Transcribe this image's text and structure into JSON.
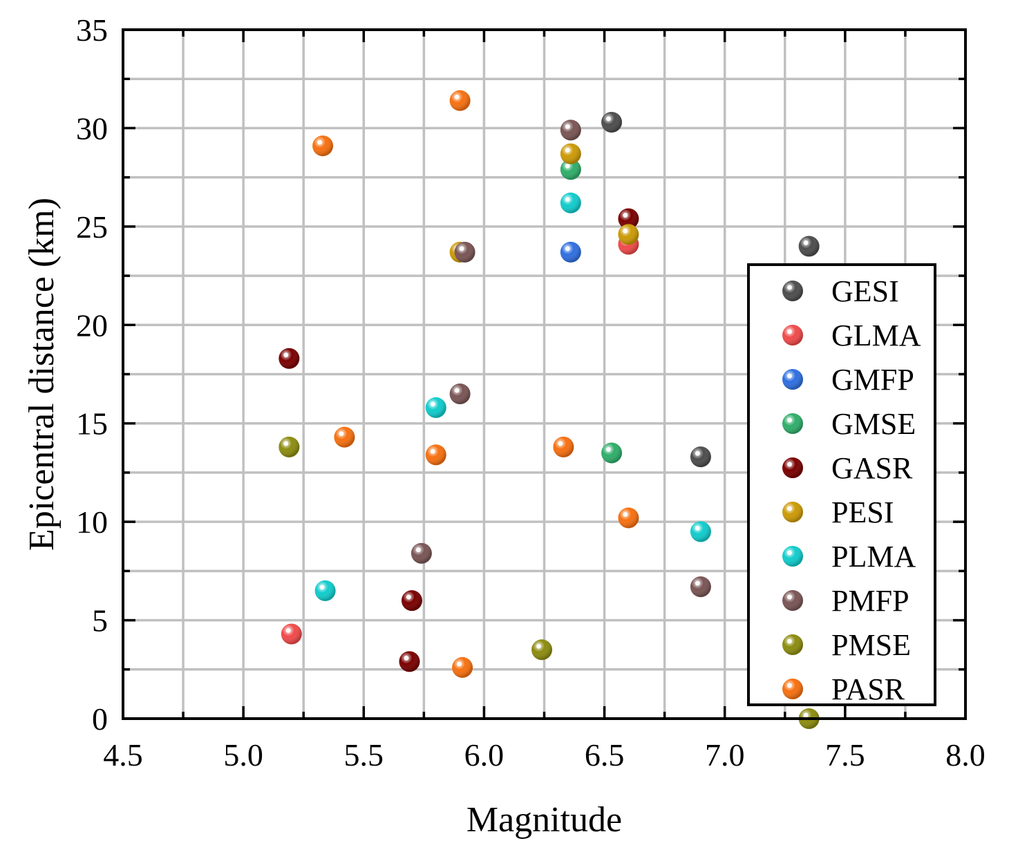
{
  "chart_data": {
    "type": "scatter",
    "xlabel": "Magnitude",
    "ylabel": "Epicentral distance (km)",
    "xlim": [
      4.5,
      8.0
    ],
    "ylim": [
      0,
      35
    ],
    "xticks": [
      4.5,
      5.0,
      5.5,
      6.0,
      6.5,
      7.0,
      7.5,
      8.0
    ],
    "xtick_labels": [
      "4.5",
      "5.0",
      "5.5",
      "6.0",
      "6.5",
      "7.0",
      "7.5",
      "8.0"
    ],
    "yticks": [
      0,
      5,
      10,
      15,
      20,
      25,
      30,
      35
    ],
    "ytick_labels": [
      "0",
      "5",
      "10",
      "15",
      "20",
      "25",
      "30",
      "35"
    ],
    "grid": true,
    "legend_position": "bottom-right",
    "series": [
      {
        "name": "GESI",
        "color": "#4d4d4d",
        "points": [
          [
            6.53,
            30.3
          ],
          [
            7.35,
            24.0
          ],
          [
            6.9,
            13.3
          ]
        ]
      },
      {
        "name": "GLMA",
        "color": "#f04a4a",
        "points": [
          [
            6.6,
            24.1
          ],
          [
            5.2,
            4.3
          ]
        ]
      },
      {
        "name": "GMFP",
        "color": "#2f6fe0",
        "points": [
          [
            6.36,
            23.7
          ]
        ]
      },
      {
        "name": "GMSE",
        "color": "#2fae6a",
        "points": [
          [
            6.36,
            27.9
          ],
          [
            6.53,
            13.5
          ]
        ]
      },
      {
        "name": "GASR",
        "color": "#7a0000",
        "points": [
          [
            6.6,
            25.4
          ],
          [
            5.19,
            18.3
          ],
          [
            5.7,
            6.0
          ],
          [
            5.69,
            2.9
          ]
        ]
      },
      {
        "name": "PESI",
        "color": "#cc9a06",
        "points": [
          [
            6.36,
            28.7
          ],
          [
            6.6,
            24.6
          ],
          [
            5.9,
            23.7
          ]
        ]
      },
      {
        "name": "PLMA",
        "color": "#11cccc",
        "points": [
          [
            6.36,
            26.2
          ],
          [
            5.8,
            15.8
          ],
          [
            6.9,
            9.5
          ],
          [
            5.34,
            6.5
          ]
        ]
      },
      {
        "name": "PMFP",
        "color": "#7a5555",
        "points": [
          [
            6.36,
            29.9
          ],
          [
            5.92,
            23.7
          ],
          [
            5.9,
            16.5
          ],
          [
            5.74,
            8.4
          ],
          [
            6.9,
            6.7
          ]
        ]
      },
      {
        "name": "PMSE",
        "color": "#8c8c10",
        "points": [
          [
            5.19,
            13.8
          ],
          [
            6.24,
            3.5
          ],
          [
            7.35,
            0.0
          ]
        ]
      },
      {
        "name": "PASR",
        "color": "#f77010",
        "points": [
          [
            5.9,
            31.4
          ],
          [
            5.33,
            29.1
          ],
          [
            5.42,
            14.3
          ],
          [
            5.8,
            13.4
          ],
          [
            6.33,
            13.8
          ],
          [
            6.6,
            10.2
          ],
          [
            5.91,
            2.6
          ]
        ]
      }
    ]
  }
}
